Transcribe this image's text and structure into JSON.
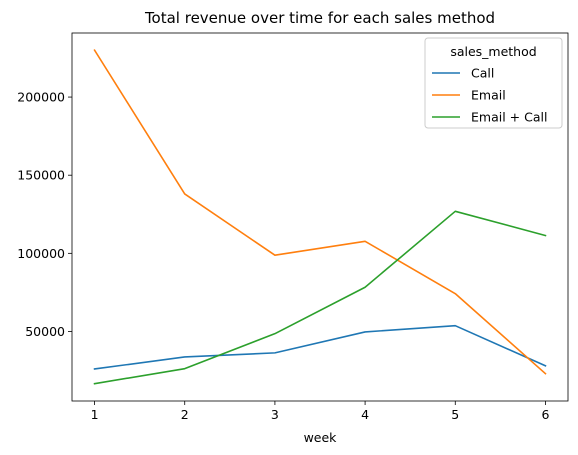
{
  "chart_data": {
    "type": "line",
    "title": "Total revenue over time for each sales method",
    "xlabel": "week",
    "ylabel": "",
    "x": [
      1,
      2,
      3,
      4,
      5,
      6
    ],
    "xticks": [
      "1",
      "2",
      "3",
      "4",
      "5",
      "6"
    ],
    "yticks": [
      50000,
      100000,
      150000,
      200000
    ],
    "ytick_labels": [
      "50000",
      "100000",
      "150000",
      "200000"
    ],
    "xlim": [
      0.75,
      6.25
    ],
    "ylim": [
      5500,
      241000
    ],
    "grid": false,
    "legend": {
      "title": "sales_method",
      "placement": "top-right"
    },
    "series": [
      {
        "name": "Call",
        "color": "#1f77b4",
        "values": [
          26000,
          33700,
          36300,
          49700,
          53700,
          28000
        ]
      },
      {
        "name": "Email",
        "color": "#ff7f0e",
        "values": [
          230000,
          138000,
          98800,
          107700,
          74200,
          23000
        ]
      },
      {
        "name": "Email + Call",
        "color": "#2ca02c",
        "values": [
          16600,
          26200,
          48600,
          78300,
          126900,
          111400
        ]
      }
    ]
  }
}
